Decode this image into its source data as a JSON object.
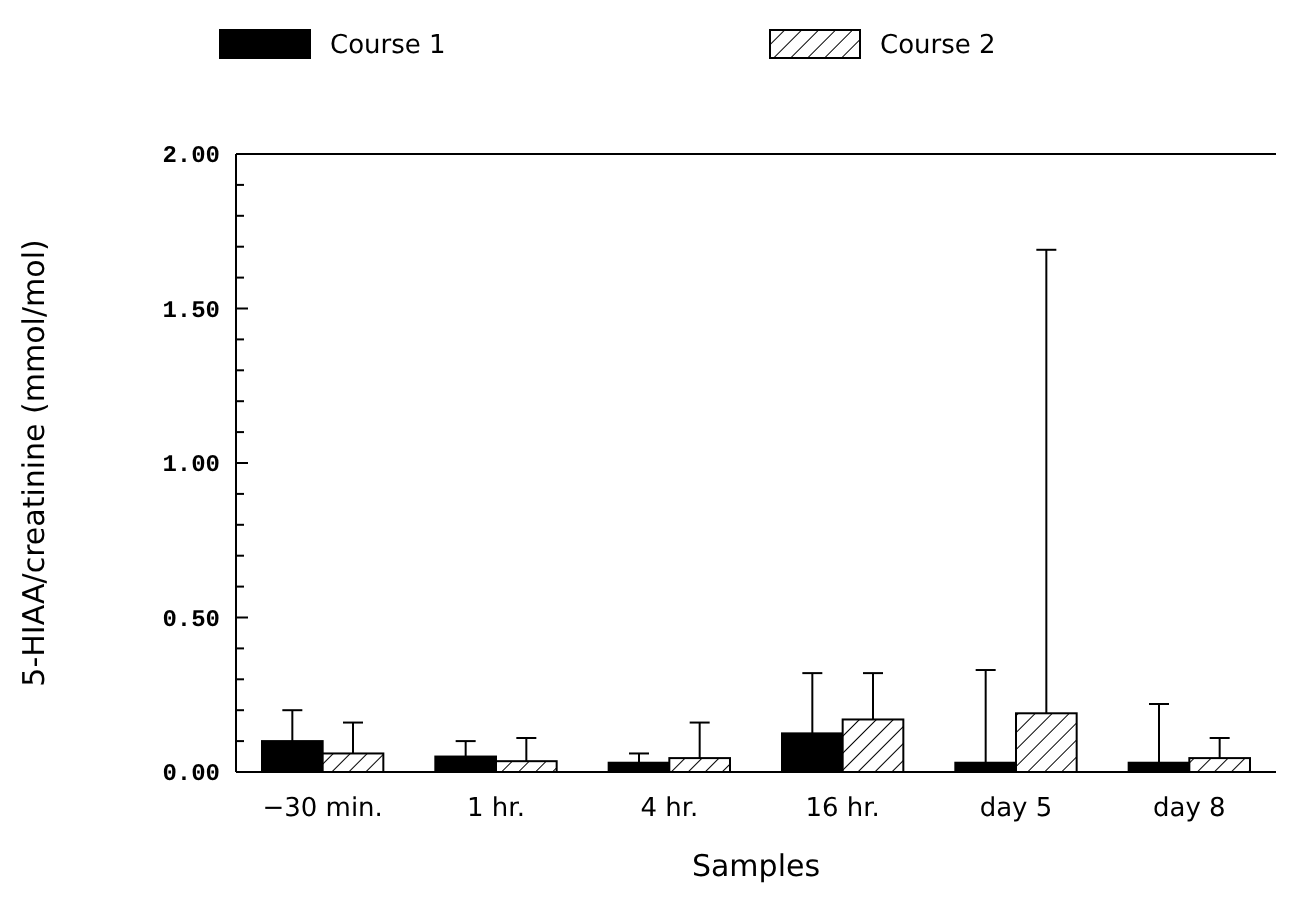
{
  "chart_data": {
    "type": "bar",
    "xlabel": "Samples",
    "ylabel": "5-HIAA/creatinine (mmol/mol)",
    "categories": [
      "−30 min.",
      "1 hr.",
      "4 hr.",
      "16 hr.",
      "day 5",
      "day 8"
    ],
    "series": [
      {
        "name": "Course 1",
        "color": "#000000",
        "values": [
          0.1,
          0.05,
          0.03,
          0.125,
          0.03,
          0.03
        ],
        "errors": [
          [
            0.1,
            0.2
          ],
          [
            0.05,
            0.1
          ],
          [
            0.03,
            0.06
          ],
          [
            0.125,
            0.32
          ],
          [
            0.03,
            0.33
          ],
          [
            0.03,
            0.22
          ]
        ]
      },
      {
        "name": "Course 2",
        "color": "#ffffff",
        "values": [
          0.06,
          0.035,
          0.045,
          0.17,
          0.19,
          0.045
        ],
        "errors": [
          [
            0.06,
            0.16
          ],
          [
            0.035,
            0.11
          ],
          [
            0.045,
            0.16
          ],
          [
            0.17,
            0.32
          ],
          [
            0.19,
            1.69
          ],
          [
            0.045,
            0.11
          ]
        ]
      }
    ],
    "ylim": [
      0,
      2
    ],
    "yticks": [
      {
        "value": 0,
        "label": "0.00"
      },
      {
        "value": 0.1,
        "label": null
      },
      {
        "value": 0.2,
        "label": null
      },
      {
        "value": 0.3,
        "label": null
      },
      {
        "value": 0.4,
        "label": null
      },
      {
        "value": 0.5,
        "label": "0.50"
      },
      {
        "value": 0.6,
        "label": null
      },
      {
        "value": 0.7,
        "label": null
      },
      {
        "value": 0.8,
        "label": null
      },
      {
        "value": 0.9,
        "label": null
      },
      {
        "value": 1,
        "label": "1.00"
      },
      {
        "value": 1.1,
        "label": null
      },
      {
        "value": 1.2,
        "label": null
      },
      {
        "value": 1.3,
        "label": null
      },
      {
        "value": 1.4,
        "label": null
      },
      {
        "value": 1.5,
        "label": "1.50"
      },
      {
        "value": 1.6,
        "label": null
      },
      {
        "value": 1.7,
        "label": null
      },
      {
        "value": 1.8,
        "label": null
      },
      {
        "value": 1.9,
        "label": null
      },
      {
        "value": 2,
        "label": "2.00"
      }
    ],
    "grid": false,
    "legend": "top"
  }
}
